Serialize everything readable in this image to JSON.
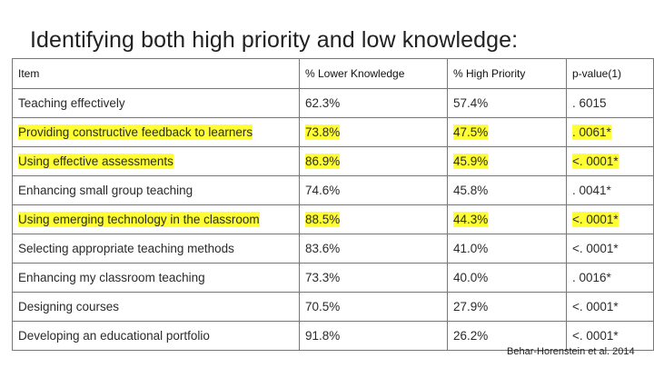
{
  "title": "Identifying both high priority and low knowledge:",
  "table": {
    "headers": [
      "Item",
      "% Lower Knowledge",
      "% High Priority",
      "p-value(1)"
    ],
    "rows": [
      {
        "cells": [
          "Teaching effectively",
          "62.3%",
          "57.4%",
          ". 6015"
        ],
        "highlighted": false
      },
      {
        "cells": [
          "Providing constructive feedback to learners",
          "73.8%",
          "47.5%",
          ". 0061*"
        ],
        "highlighted": true
      },
      {
        "cells": [
          "Using effective assessments",
          "86.9%",
          "45.9%",
          "<. 0001*"
        ],
        "highlighted": true
      },
      {
        "cells": [
          "Enhancing small group teaching",
          "74.6%",
          "45.8%",
          ". 0041*"
        ],
        "highlighted": false
      },
      {
        "cells": [
          "Using emerging technology in the classroom",
          "88.5%",
          "44.3%",
          "<. 0001*"
        ],
        "highlighted": true
      },
      {
        "cells": [
          "Selecting appropriate teaching methods",
          "83.6%",
          "41.0%",
          "<. 0001*"
        ],
        "highlighted": false
      },
      {
        "cells": [
          "Enhancing my classroom teaching",
          "73.3%",
          "40.0%",
          ". 0016*"
        ],
        "highlighted": false
      },
      {
        "cells": [
          "Designing courses",
          "70.5%",
          "27.9%",
          "<. 0001*"
        ],
        "highlighted": false
      },
      {
        "cells": [
          "Developing an educational portfolio",
          "91.8%",
          "26.2%",
          "<. 0001*"
        ],
        "highlighted": false
      }
    ]
  },
  "highlight_color": "#ffff33",
  "citation": "Behar-Horenstein et al. 2014"
}
